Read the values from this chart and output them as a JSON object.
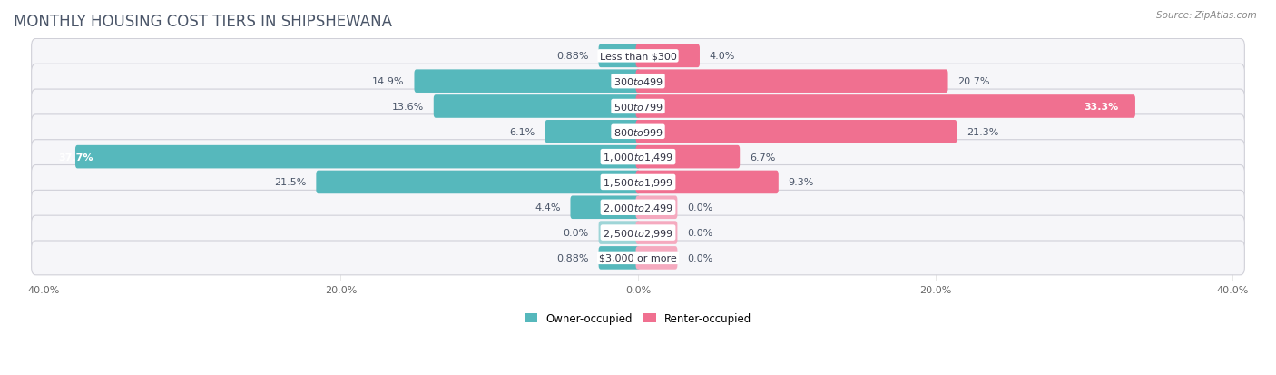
{
  "title": "MONTHLY HOUSING COST TIERS IN SHIPSHEWANA",
  "source": "Source: ZipAtlas.com",
  "categories": [
    "Less than $300",
    "$300 to $499",
    "$500 to $799",
    "$800 to $999",
    "$1,000 to $1,499",
    "$1,500 to $1,999",
    "$2,000 to $2,499",
    "$2,500 to $2,999",
    "$3,000 or more"
  ],
  "owner_values": [
    0.88,
    14.9,
    13.6,
    6.1,
    37.7,
    21.5,
    4.4,
    0.0,
    0.88
  ],
  "renter_values": [
    4.0,
    20.7,
    33.3,
    21.3,
    6.7,
    9.3,
    0.0,
    0.0,
    0.0
  ],
  "owner_color": "#56b8bc",
  "owner_color_light": "#9ed5d7",
  "renter_color": "#f07090",
  "renter_color_light": "#f5aabf",
  "background_color": "#ffffff",
  "row_bg_color": "#f0f0f4",
  "axis_max": 40.0,
  "min_bar_width": 2.5,
  "title_fontsize": 12,
  "label_fontsize": 8,
  "tick_fontsize": 8,
  "legend_fontsize": 8.5,
  "title_color": "#4a5568",
  "label_color": "#4a5568",
  "tick_color": "#666666"
}
